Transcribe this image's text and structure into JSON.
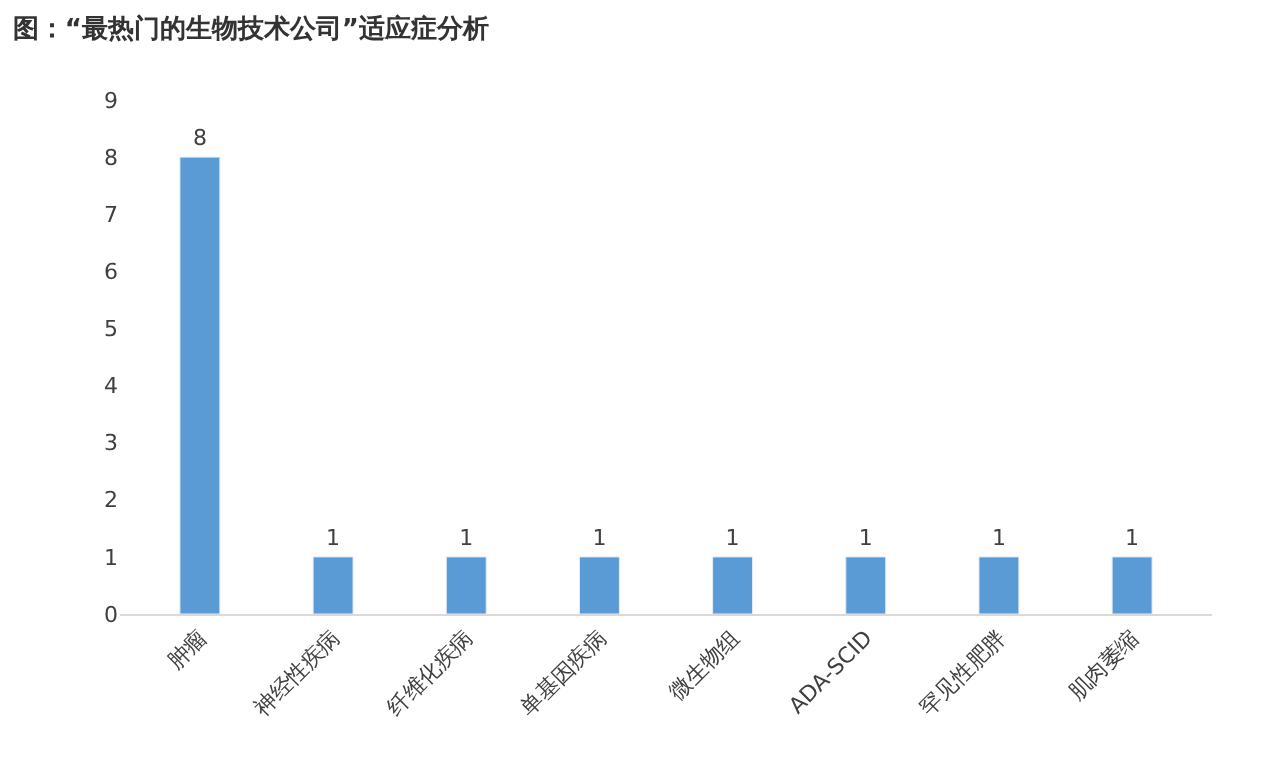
{
  "chart_data": {
    "type": "bar",
    "title": "图：“最热门的生物技术公司”适应症分析",
    "categories": [
      "肿瘤",
      "神经性疾病",
      "纤维化疾病",
      "单基因疾病",
      "微生物组",
      "ADA-SCID",
      "罕见性肥胖",
      "肌肉萎缩"
    ],
    "values": [
      8,
      1,
      1,
      1,
      1,
      1,
      1,
      1
    ],
    "color": "#5b9bd5",
    "ylim": [
      0,
      9
    ],
    "yticks": [
      0,
      1,
      2,
      3,
      4,
      5,
      6,
      7,
      8,
      9
    ],
    "data_labels": true
  }
}
